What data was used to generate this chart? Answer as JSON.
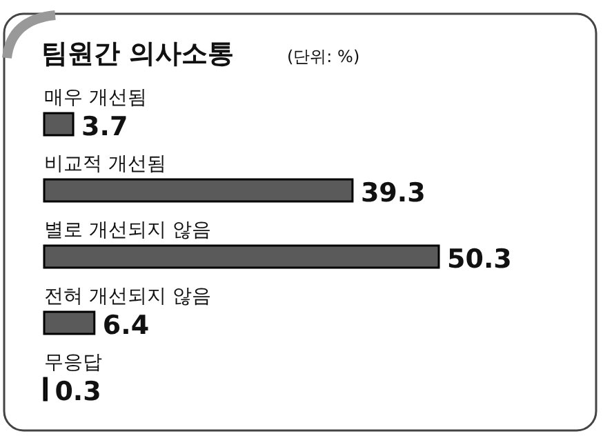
{
  "chart_data": {
    "type": "bar",
    "orientation": "horizontal",
    "title": "팀원간 의사소통",
    "subtitle": "(단위: %)",
    "categories": [
      "매우 개선됨",
      "비교적 개선됨",
      "별로 개선되지 않음",
      "전혀 개선되지 않음",
      "무응답"
    ],
    "values": [
      3.7,
      39.3,
      50.3,
      6.4,
      0.3
    ],
    "color": "#5a5a5a",
    "data_labels": true
  }
}
